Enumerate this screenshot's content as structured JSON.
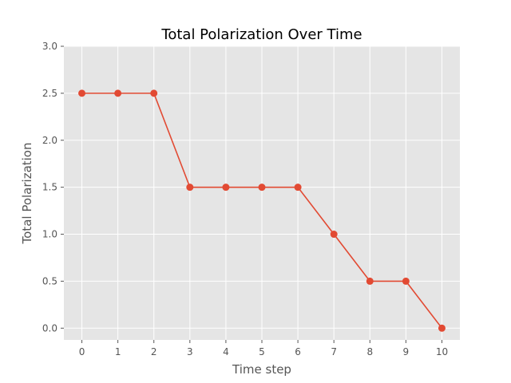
{
  "chart_data": {
    "type": "line",
    "title": "Total Polarization Over Time",
    "xlabel": "Time step",
    "ylabel": "Total Polarization",
    "x": [
      0,
      1,
      2,
      3,
      4,
      5,
      6,
      7,
      8,
      9,
      10
    ],
    "series": [
      {
        "values": [
          2.5,
          2.5,
          2.5,
          1.5,
          1.5,
          1.5,
          1.5,
          1.0,
          0.5,
          0.5,
          0.0
        ],
        "color": "#E24A33",
        "marker": "circle"
      }
    ],
    "xticks": [
      "0",
      "1",
      "2",
      "3",
      "4",
      "5",
      "6",
      "7",
      "8",
      "9",
      "10"
    ],
    "yticks": [
      "0.0",
      "0.5",
      "1.0",
      "1.5",
      "2.0",
      "2.5",
      "3.0"
    ],
    "xlim": [
      -0.5,
      10.5
    ],
    "ylim": [
      -0.125,
      3.0
    ],
    "grid": true,
    "legend": "none",
    "background_color": "#E5E5E5",
    "grid_color": "#FFFFFF"
  }
}
